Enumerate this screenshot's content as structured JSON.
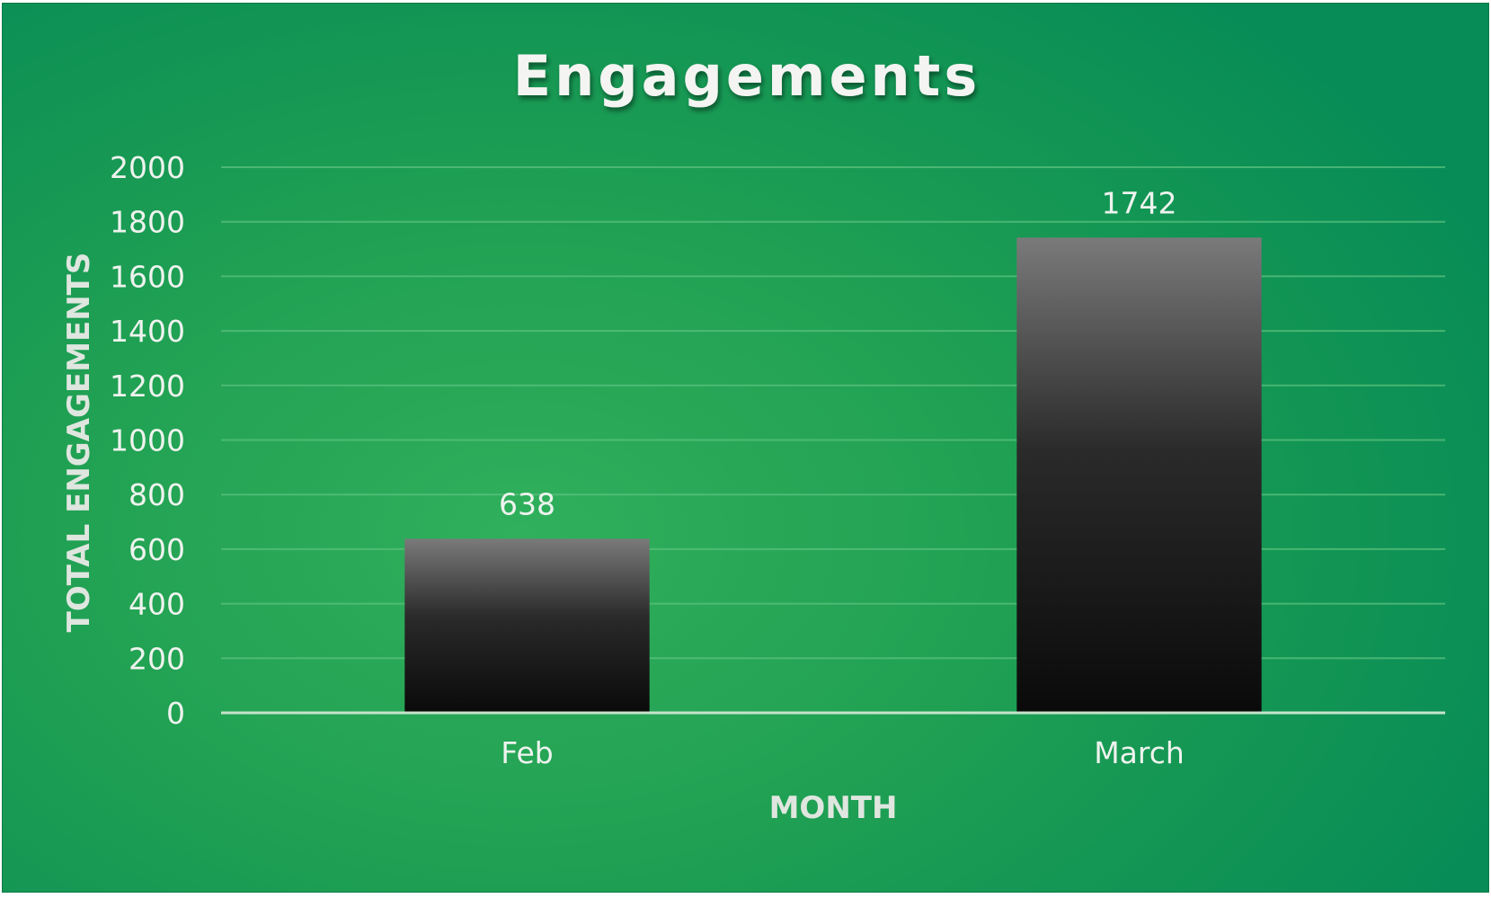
{
  "chart_data": {
    "type": "bar",
    "title": "Engagements",
    "xlabel": "MONTH",
    "ylabel": "TOTAL ENGAGEMENTS",
    "categories": [
      "Feb",
      "March"
    ],
    "values": [
      638,
      1742
    ],
    "data_labels": [
      "638",
      "1742"
    ],
    "ylim": [
      0,
      2000
    ],
    "yticks": [
      "0",
      "200",
      "400",
      "600",
      "800",
      "1000",
      "1200",
      "1400",
      "1600",
      "1800",
      "2000"
    ],
    "grid": true,
    "legend": "none",
    "colors": {
      "background_center": "#30b05c",
      "background_edge": "#078c57",
      "bar_top": "#7a7a7a",
      "bar_bottom": "#0a0a0a",
      "gridline": "#5cc07e",
      "text": "#eef3ee"
    }
  }
}
